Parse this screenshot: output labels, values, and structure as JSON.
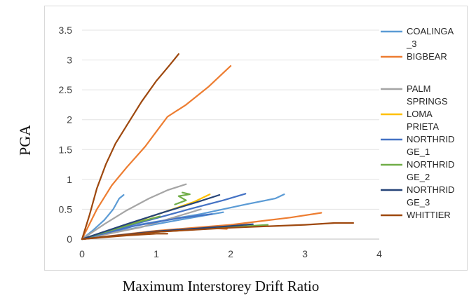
{
  "chart_data": {
    "type": "line",
    "xlabel": "Maximum Interstorey Drift Ratio",
    "ylabel": "PGA",
    "xlim": [
      0,
      4
    ],
    "ylim": [
      0,
      3.5
    ],
    "x_ticks": [
      "0",
      "1",
      "2",
      "3",
      "4"
    ],
    "y_ticks": [
      "0",
      "0.5",
      "1",
      "1.5",
      "2",
      "2.5",
      "3",
      "3.5"
    ],
    "grid": "horizontal",
    "legend_position": "right",
    "series": [
      {
        "name": "COALINGA _3",
        "color": "#5b9bd5",
        "curves": [
          [
            [
              0,
              0
            ],
            [
              0.15,
              0.15
            ],
            [
              0.3,
              0.32
            ],
            [
              0.42,
              0.5
            ],
            [
              0.5,
              0.68
            ],
            [
              0.56,
              0.74
            ]
          ],
          [
            [
              0,
              0
            ],
            [
              0.8,
              0.25
            ],
            [
              1.6,
              0.42
            ],
            [
              2.2,
              0.58
            ],
            [
              2.6,
              0.68
            ],
            [
              2.72,
              0.75
            ]
          ],
          [
            [
              0,
              0
            ],
            [
              0.6,
              0.16
            ],
            [
              1.3,
              0.32
            ],
            [
              1.9,
              0.45
            ]
          ]
        ]
      },
      {
        "name": "BIGBEAR",
        "color": "#ed7d31",
        "curves": [
          [
            [
              0,
              0
            ],
            [
              0.2,
              0.5
            ],
            [
              0.4,
              0.9
            ],
            [
              0.6,
              1.2
            ],
            [
              0.85,
              1.55
            ],
            [
              1.0,
              1.8
            ],
            [
              1.15,
              2.05
            ],
            [
              1.4,
              2.25
            ],
            [
              1.7,
              2.55
            ],
            [
              2.0,
              2.9
            ]
          ],
          [
            [
              0,
              0
            ],
            [
              1,
              0.14
            ],
            [
              2,
              0.24
            ],
            [
              2.8,
              0.36
            ],
            [
              3.22,
              0.44
            ]
          ],
          [
            [
              0,
              0
            ],
            [
              1,
              0.12
            ],
            [
              1.8,
              0.18
            ],
            [
              1.95,
              0.17
            ]
          ]
        ]
      },
      {
        "name": "PALM SPRINGS",
        "color": "#a5a5a5",
        "curves": [
          [
            [
              0,
              0
            ],
            [
              0.3,
              0.25
            ],
            [
              0.6,
              0.48
            ],
            [
              0.9,
              0.68
            ],
            [
              1.15,
              0.82
            ],
            [
              1.4,
              0.92
            ]
          ],
          [
            [
              0,
              0
            ],
            [
              0.8,
              0.2
            ],
            [
              1.6,
              0.5
            ]
          ]
        ]
      },
      {
        "name": "LOMA PRIETA",
        "color": "#ffc000",
        "curves": [
          [
            [
              0,
              0
            ],
            [
              0.5,
              0.2
            ],
            [
              1.1,
              0.45
            ],
            [
              1.5,
              0.62
            ],
            [
              1.72,
              0.75
            ]
          ]
        ]
      },
      {
        "name": "NORTHRIDGE_1",
        "color": "#4472c4",
        "curves": [
          [
            [
              0,
              0
            ],
            [
              0.5,
              0.18
            ],
            [
              1.0,
              0.35
            ],
            [
              1.5,
              0.52
            ],
            [
              1.9,
              0.65
            ],
            [
              2.2,
              0.76
            ]
          ],
          [
            [
              0,
              0
            ],
            [
              0.7,
              0.22
            ],
            [
              1.3,
              0.35
            ],
            [
              1.75,
              0.42
            ]
          ]
        ]
      },
      {
        "name": "NORTHRIDGE_2",
        "color": "#70ad47",
        "curves": [
          [
            [
              0,
              0
            ],
            [
              0.4,
              0.15
            ],
            [
              0.8,
              0.3
            ],
            [
              1.05,
              0.38
            ]
          ],
          [
            [
              0,
              0
            ],
            [
              1,
              0.12
            ],
            [
              2,
              0.2
            ],
            [
              2.5,
              0.24
            ]
          ],
          [
            [
              1.25,
              0.58
            ],
            [
              1.4,
              0.65
            ],
            [
              1.3,
              0.72
            ],
            [
              1.45,
              0.75
            ],
            [
              1.35,
              0.78
            ]
          ]
        ]
      },
      {
        "name": "NORTHRIDGE_3",
        "color": "#264478",
        "curves": [
          [
            [
              0,
              0
            ],
            [
              0.6,
              0.25
            ],
            [
              1.1,
              0.45
            ],
            [
              1.55,
              0.62
            ],
            [
              1.85,
              0.74
            ]
          ],
          [
            [
              0,
              0
            ],
            [
              1,
              0.13
            ],
            [
              2,
              0.22
            ],
            [
              2.3,
              0.25
            ]
          ]
        ]
      },
      {
        "name": "WHITTIER",
        "color": "#9e480e",
        "curves": [
          [
            [
              0,
              0
            ],
            [
              0.1,
              0.4
            ],
            [
              0.2,
              0.85
            ],
            [
              0.32,
              1.25
            ],
            [
              0.45,
              1.6
            ],
            [
              0.6,
              1.9
            ],
            [
              0.8,
              2.3
            ],
            [
              1.0,
              2.65
            ],
            [
              1.17,
              2.9
            ],
            [
              1.3,
              3.1
            ]
          ],
          [
            [
              0,
              0
            ],
            [
              1,
              0.12
            ],
            [
              2,
              0.19
            ],
            [
              3,
              0.24
            ],
            [
              3.4,
              0.27
            ],
            [
              3.65,
              0.27
            ]
          ],
          [
            [
              0,
              0
            ],
            [
              0.6,
              0.06
            ],
            [
              1.0,
              0.09
            ],
            [
              1.15,
              0.09
            ]
          ]
        ]
      }
    ],
    "legend": [
      {
        "lines": [
          "COALINGA",
          "_3"
        ],
        "color": "#5b9bd5"
      },
      {
        "lines": [
          "BIGBEAR"
        ],
        "color": "#ed7d31"
      },
      {
        "lines": [
          "PALM",
          "SPRINGS"
        ],
        "color": "#a5a5a5"
      },
      {
        "lines": [
          "LOMA",
          "PRIETA"
        ],
        "color": "#ffc000"
      },
      {
        "lines": [
          "NORTHRID",
          "GE_1"
        ],
        "color": "#4472c4"
      },
      {
        "lines": [
          "NORTHRID",
          "GE_2"
        ],
        "color": "#70ad47"
      },
      {
        "lines": [
          "NORTHRID",
          "GE_3"
        ],
        "color": "#264478"
      },
      {
        "lines": [
          "WHITTIER"
        ],
        "color": "#9e480e"
      }
    ]
  }
}
